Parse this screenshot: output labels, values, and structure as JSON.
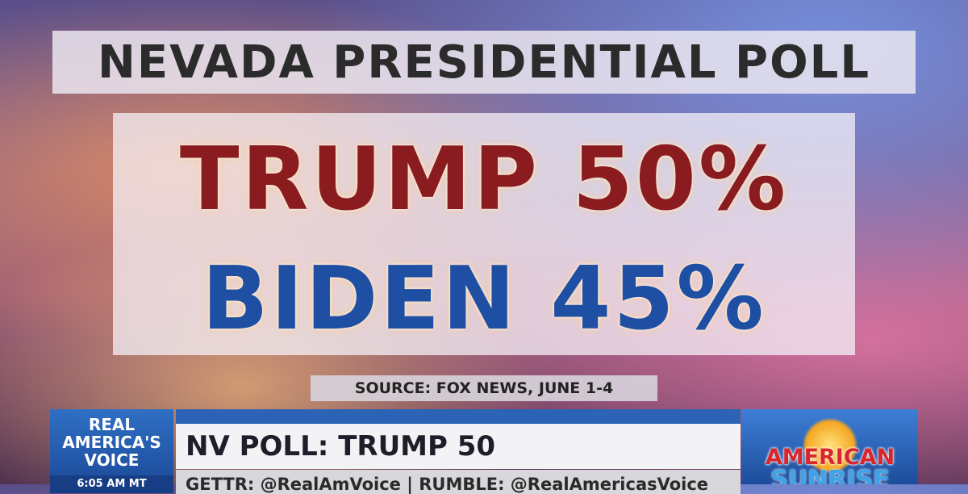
{
  "graphic": {
    "title": "NEVADA PRESIDENTIAL POLL",
    "lines": [
      "TRUMP 50%",
      "BIDEN 45%"
    ],
    "source": "SOURCE: FOX NEWS, JUNE 1-4"
  },
  "lower_third": {
    "network_logo": {
      "lines": [
        "REAL",
        "AMERICA'S",
        "VOICE"
      ],
      "time": "6:05 AM MT"
    },
    "headline": "NV POLL: TRUMP 50",
    "ticker": "GETTR: @RealAmVoice | RUMBLE: @RealAmericasVoice",
    "show_logo": [
      "AMERICAN",
      "SUNRISE"
    ]
  }
}
